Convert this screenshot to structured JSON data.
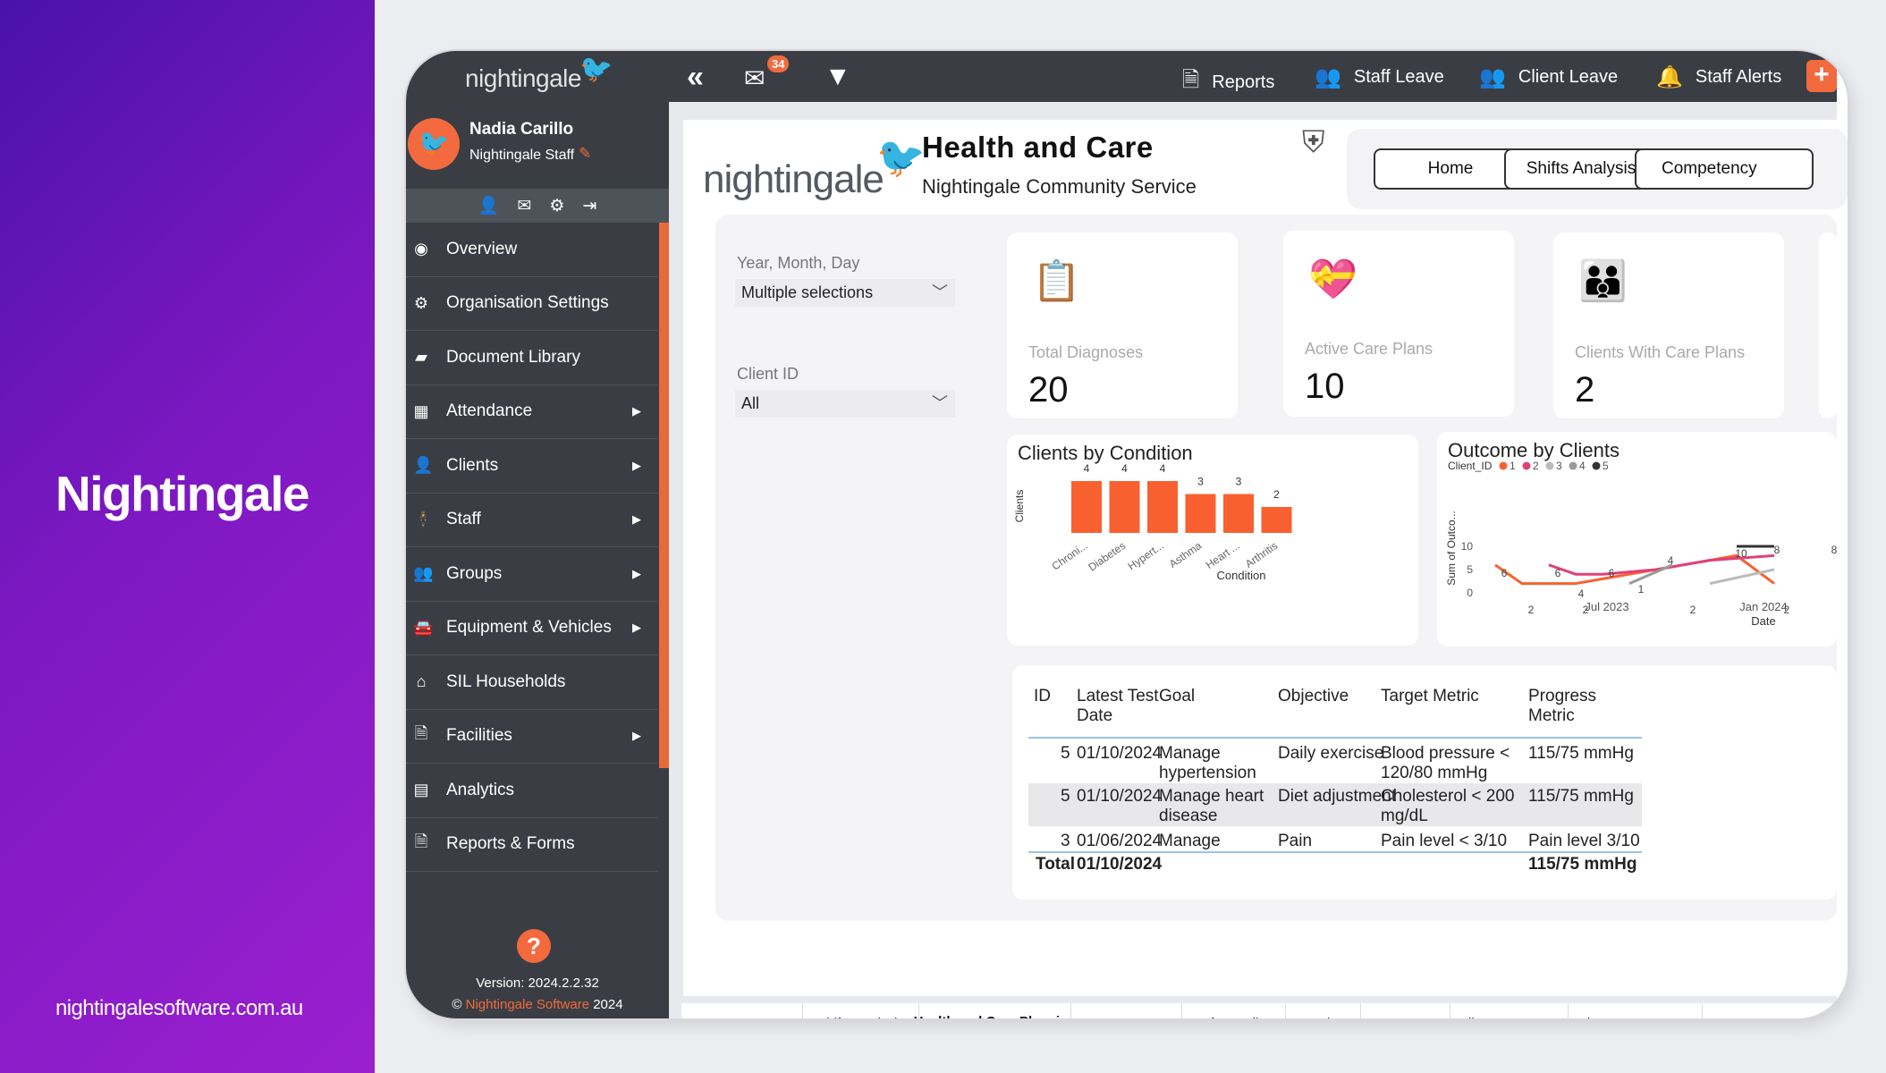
{
  "promo": {
    "brand": "Nightingale",
    "website": "nightingalesoftware.com.au"
  },
  "topbar": {
    "logo": "nightingale",
    "mail_badge": "34",
    "items": [
      {
        "label": "Reports",
        "icon": "document-icon"
      },
      {
        "label": "Staff Leave",
        "icon": "staff-group-icon"
      },
      {
        "label": "Client Leave",
        "icon": "client-group-icon"
      },
      {
        "label": "Staff Alerts",
        "icon": "bell-icon"
      }
    ]
  },
  "user": {
    "name": "Nadia Carillo",
    "role": "Nightingale Staff"
  },
  "sidebar": {
    "items": [
      {
        "label": "Overview",
        "icon": "eye-icon",
        "has_sub": false
      },
      {
        "label": "Organisation Settings",
        "icon": "gear-icon",
        "has_sub": false
      },
      {
        "label": "Document Library",
        "icon": "folder-icon",
        "has_sub": false
      },
      {
        "label": "Attendance",
        "icon": "calendar-icon",
        "has_sub": true
      },
      {
        "label": "Clients",
        "icon": "person-icon",
        "has_sub": true
      },
      {
        "label": "Staff",
        "icon": "staff-icon",
        "has_sub": true
      },
      {
        "label": "Groups",
        "icon": "groups-icon",
        "has_sub": true
      },
      {
        "label": "Equipment & Vehicles",
        "icon": "car-icon",
        "has_sub": true
      },
      {
        "label": "SIL Households",
        "icon": "house-icon",
        "has_sub": false
      },
      {
        "label": "Facilities",
        "icon": "file-icon",
        "has_sub": true
      },
      {
        "label": "Analytics",
        "icon": "chart-icon",
        "has_sub": false
      },
      {
        "label": "Reports & Forms",
        "icon": "form-icon",
        "has_sub": false
      }
    ],
    "version": "Version: 2024.2.2.32",
    "copyright_prefix": "©",
    "copyright_company": "Nightingale Software",
    "copyright_year": "2024"
  },
  "report": {
    "logo": "nightingale",
    "title": "Health and Care",
    "subtitle": "Nightingale Community Service",
    "nav": [
      "Home",
      "Shifts Analysis",
      "Competency"
    ],
    "filters": [
      {
        "label": "Year, Month, Day",
        "value": "Multiple selections"
      },
      {
        "label": "Client ID",
        "value": "All"
      }
    ],
    "kpis": [
      {
        "label": "Total Diagnoses",
        "value": "20",
        "icon": "clipboard-icon"
      },
      {
        "label": "Active Care Plans",
        "value": "10",
        "icon": "heart-hand-icon"
      },
      {
        "label": "Clients With Care Plans",
        "value": "2",
        "icon": "people-icon"
      }
    ],
    "table": {
      "headers": [
        "ID",
        "Latest Test Date",
        "Goal",
        "Objective",
        "Target Metric",
        "Progress Metric"
      ],
      "rows": [
        {
          "id": "5",
          "date": "01/10/2024",
          "goal": "Manage hypertension",
          "objective": "Daily exercise",
          "target": "Blood pressure < 120/80 mmHg",
          "progress": "115/75 mmHg"
        },
        {
          "id": "5",
          "date": "01/10/2024",
          "goal": "Manage heart disease",
          "objective": "Diet adjustment",
          "target": "Cholesterol < 200 mg/dL",
          "progress": "115/75 mmHg"
        },
        {
          "id": "3",
          "date": "01/06/2024",
          "goal": "Manage chronic",
          "objective": "Pain",
          "target": "Pain level < 3/10",
          "progress": "Pain level 3/10"
        }
      ],
      "total_label": "Total",
      "total_date": "01/10/2024",
      "total_progress": "115/75 mmHg"
    },
    "tabs": [
      "Home",
      "Shifts Analysis",
      "Health and Care Planning",
      "Competency",
      "Safeguarding",
      "Invoice",
      "Coverage",
      "Client Movement",
      "Finance Statement"
    ],
    "active_tab": 2
  },
  "chart_data": [
    {
      "type": "bar",
      "title": "Clients by Condition",
      "xlabel": "Condition",
      "ylabel": "Clients",
      "categories": [
        "Chroni...",
        "Diabetes",
        "Hypert...",
        "Asthma",
        "Heart ...",
        "Arthritis"
      ],
      "values": [
        4,
        4,
        4,
        3,
        3,
        2
      ],
      "color": "#f8612f"
    },
    {
      "type": "line",
      "title": "Outcome by Clients",
      "xlabel": "Date",
      "ylabel": "Sum of Outco...",
      "legend_title": "Client_ID",
      "legend_position": "top-left",
      "ylim": [
        0,
        10
      ],
      "y_ticks": [
        0,
        5,
        10
      ],
      "x_ticks": [
        "Jul 2023",
        "Jan 2024"
      ],
      "series": [
        {
          "name": "1",
          "color": "#f8612f",
          "points": [
            [
              0.0,
              6
            ],
            [
              0.5,
              2
            ],
            [
              1.5,
              2
            ],
            [
              2.5,
              4
            ],
            [
              3.5,
              6
            ],
            [
              4.5,
              8
            ],
            [
              5.2,
              2
            ]
          ]
        },
        {
          "name": "2",
          "color": "#e0407a",
          "points": [
            [
              1.0,
              6
            ],
            [
              1.5,
              4
            ],
            [
              2.0,
              4
            ],
            [
              3.0,
              5
            ],
            [
              4.0,
              7
            ],
            [
              5.2,
              8
            ]
          ]
        },
        {
          "name": "3",
          "color": "#bbbbbb",
          "points": [
            [
              4.0,
              2
            ],
            [
              5.2,
              5
            ]
          ]
        },
        {
          "name": "4",
          "color": "#999999",
          "points": [
            [
              2.5,
              2
            ],
            [
              3.3,
              6
            ]
          ]
        },
        {
          "name": "5",
          "color": "#333333",
          "points": [
            [
              4.5,
              10
            ],
            [
              5.2,
              10
            ]
          ]
        }
      ],
      "data_labels": [
        "10",
        "8",
        "8",
        "6",
        "6",
        "6",
        "4",
        "4",
        "1",
        "2",
        "2",
        "2",
        "2"
      ]
    }
  ]
}
